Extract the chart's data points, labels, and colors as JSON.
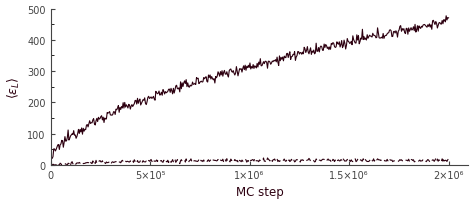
{
  "title": "",
  "xlabel": "MC step",
  "xlim": [
    0,
    2100000
  ],
  "ylim": [
    0,
    500
  ],
  "yticks": [
    0,
    100,
    200,
    300,
    400,
    500
  ],
  "xticks": [
    0,
    500000,
    1000000,
    1500000,
    2000000
  ],
  "xtick_labels": [
    "0",
    "5×10⁵",
    "1×10⁶",
    "1.5×10⁶",
    "2×10⁶"
  ],
  "solid_color": "#2d0010",
  "dashed_color": "#2d0010",
  "background_color": "#ffffff",
  "n_points": 500,
  "solid_final": 460,
  "dashed_level": 15,
  "figsize": [
    4.74,
    2.05
  ],
  "dpi": 100
}
